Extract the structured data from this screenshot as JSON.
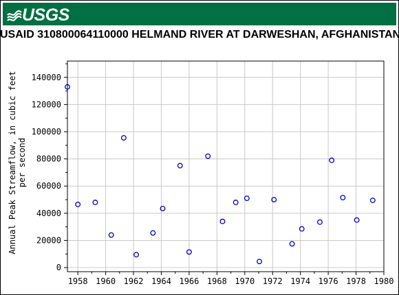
{
  "banner": {
    "logo_text": "USGS",
    "color": "#006f41"
  },
  "title": "USAID 310800064110000 HELMAND RIVER AT DARWESHAN, AFGHANISTAN",
  "chart_data": {
    "type": "scatter",
    "title": "USAID 310800064110000 HELMAND RIVER AT DARWESHAN, AFGHANISTAN",
    "xlabel": "",
    "ylabel": [
      "Annual Peak Streamflow, in cubic feet",
      "per second"
    ],
    "xlim": [
      1957.25,
      1980
    ],
    "ylim": [
      -3000,
      152000
    ],
    "xticks": [
      1958,
      1960,
      1962,
      1964,
      1966,
      1968,
      1970,
      1972,
      1974,
      1976,
      1978,
      1980
    ],
    "xtick_labels": [
      "1958",
      "1960",
      "1962",
      "1964",
      "1966",
      "1968",
      "1970",
      "1972",
      "1974",
      "1976",
      "1978",
      "1980"
    ],
    "yticks": [
      0,
      20000,
      40000,
      60000,
      80000,
      100000,
      120000,
      140000
    ],
    "ytick_labels": [
      "0",
      "20000",
      "40000",
      "60000",
      "80000",
      "100000",
      "120000",
      "140000"
    ],
    "grid": true,
    "marker_color": "#0000cc",
    "points": [
      {
        "x": 1957.25,
        "y": 133000
      },
      {
        "x": 1958.0,
        "y": 46500
      },
      {
        "x": 1959.25,
        "y": 48000
      },
      {
        "x": 1960.4,
        "y": 24000
      },
      {
        "x": 1961.3,
        "y": 95500
      },
      {
        "x": 1962.2,
        "y": 9500
      },
      {
        "x": 1963.4,
        "y": 25500
      },
      {
        "x": 1964.1,
        "y": 43500
      },
      {
        "x": 1965.35,
        "y": 75000
      },
      {
        "x": 1966.0,
        "y": 11500
      },
      {
        "x": 1967.35,
        "y": 82000
      },
      {
        "x": 1968.4,
        "y": 34000
      },
      {
        "x": 1969.35,
        "y": 48000
      },
      {
        "x": 1970.15,
        "y": 51000
      },
      {
        "x": 1971.05,
        "y": 4500
      },
      {
        "x": 1972.1,
        "y": 50000
      },
      {
        "x": 1973.4,
        "y": 17500
      },
      {
        "x": 1974.1,
        "y": 28500
      },
      {
        "x": 1975.4,
        "y": 33500
      },
      {
        "x": 1976.25,
        "y": 79000
      },
      {
        "x": 1977.05,
        "y": 51500
      },
      {
        "x": 1978.05,
        "y": 35000
      },
      {
        "x": 1979.2,
        "y": 49500
      }
    ]
  }
}
